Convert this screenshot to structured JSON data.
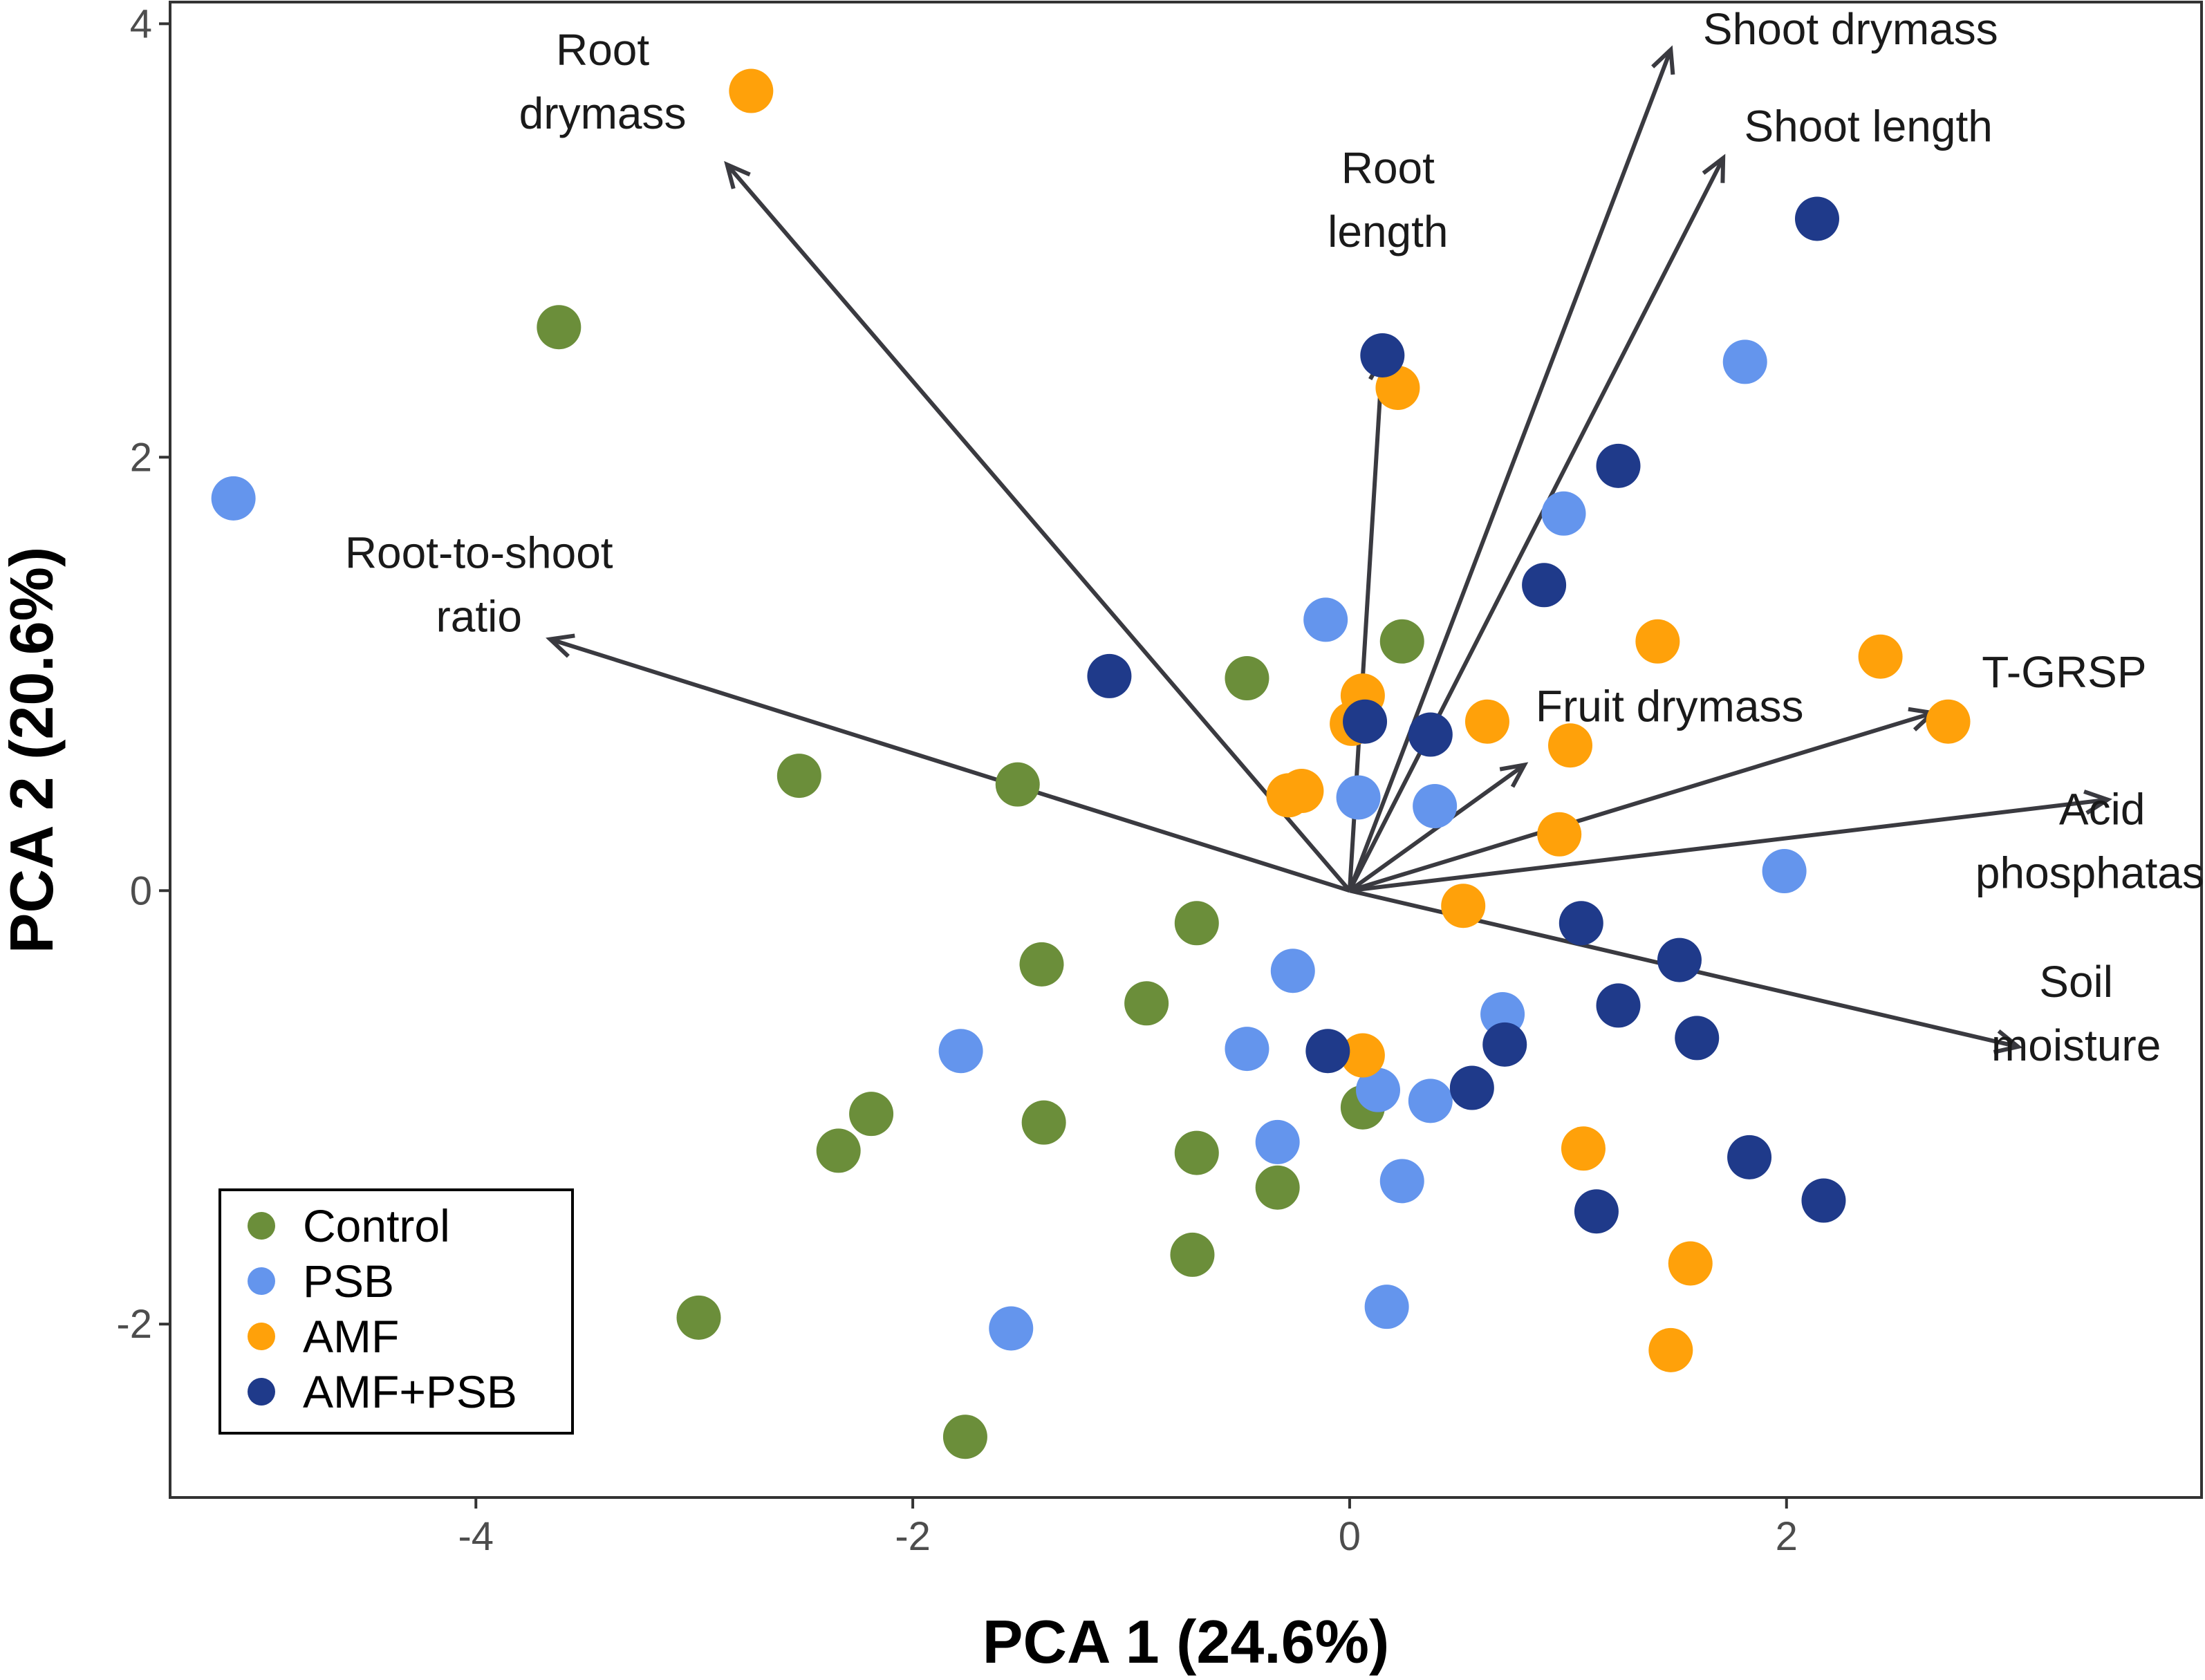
{
  "chart_data": {
    "type": "scatter",
    "subtype": "pca-biplot",
    "title": "",
    "xlabel": "PCA 1 (24.6%)",
    "ylabel": "PCA 2 (20.6%)",
    "xlim": [
      -5.4,
      3.9
    ],
    "ylim": [
      -2.8,
      4.1
    ],
    "x_ticks": [
      {
        "value": -4,
        "label": "-4"
      },
      {
        "value": -2,
        "label": "-2"
      },
      {
        "value": 0,
        "label": "0"
      },
      {
        "value": 2,
        "label": "2"
      }
    ],
    "y_ticks": [
      {
        "value": -2,
        "label": "-2"
      },
      {
        "value": 0,
        "label": "0"
      },
      {
        "value": 2,
        "label": "2"
      },
      {
        "value": 4,
        "label": "4"
      }
    ],
    "grid": false,
    "legend_position": "bottom-left",
    "series": [
      {
        "name": "Control",
        "color": "#6b8e3a",
        "points": [
          [
            -3.62,
            2.6
          ],
          [
            -2.52,
            0.53
          ],
          [
            -1.52,
            0.49
          ],
          [
            -0.47,
            0.98
          ],
          [
            0.24,
            1.15
          ],
          [
            -0.7,
            -0.15
          ],
          [
            -1.41,
            -0.34
          ],
          [
            -0.93,
            -0.52
          ],
          [
            -2.19,
            -1.03
          ],
          [
            -2.34,
            -1.2
          ],
          [
            -1.4,
            -1.07
          ],
          [
            -0.7,
            -1.21
          ],
          [
            -0.33,
            -1.37
          ],
          [
            -0.72,
            -1.68
          ],
          [
            0.06,
            -1.0
          ],
          [
            -2.98,
            -1.97
          ],
          [
            -1.76,
            -2.52
          ]
        ]
      },
      {
        "name": "PSB",
        "color": "#6495ed",
        "points": [
          [
            -5.11,
            1.81
          ],
          [
            -0.11,
            1.25
          ],
          [
            0.04,
            0.43
          ],
          [
            0.39,
            0.39
          ],
          [
            0.98,
            1.74
          ],
          [
            1.81,
            2.44
          ],
          [
            1.99,
            0.09
          ],
          [
            -0.26,
            -0.37
          ],
          [
            -0.47,
            -0.73
          ],
          [
            0.7,
            -0.57
          ],
          [
            0.13,
            -0.92
          ],
          [
            0.37,
            -0.97
          ],
          [
            -1.78,
            -0.74
          ],
          [
            -0.33,
            -1.16
          ],
          [
            0.24,
            -1.34
          ],
          [
            0.17,
            -1.92
          ],
          [
            -1.55,
            -2.02
          ]
        ]
      },
      {
        "name": "AMF",
        "color": "#ffa10a",
        "points": [
          [
            -2.74,
            3.69
          ],
          [
            0.22,
            2.32
          ],
          [
            1.41,
            1.15
          ],
          [
            2.43,
            1.08
          ],
          [
            2.74,
            0.78
          ],
          [
            0.06,
            0.9
          ],
          [
            0.01,
            0.77
          ],
          [
            0.63,
            0.78
          ],
          [
            1.01,
            0.67
          ],
          [
            -0.22,
            0.46
          ],
          [
            -0.28,
            0.44
          ],
          [
            0.96,
            0.26
          ],
          [
            0.52,
            -0.07
          ],
          [
            0.06,
            -0.76
          ],
          [
            1.07,
            -1.19
          ],
          [
            1.56,
            -1.72
          ],
          [
            1.47,
            -2.12
          ]
        ]
      },
      {
        "name": "AMF+PSB",
        "color": "#1f3a8a",
        "points": [
          [
            2.14,
            3.1
          ],
          [
            0.15,
            2.47
          ],
          [
            1.23,
            1.96
          ],
          [
            0.89,
            1.41
          ],
          [
            -1.1,
            0.99
          ],
          [
            0.07,
            0.78
          ],
          [
            0.37,
            0.72
          ],
          [
            1.06,
            -0.15
          ],
          [
            1.51,
            -0.32
          ],
          [
            1.23,
            -0.53
          ],
          [
            1.59,
            -0.68
          ],
          [
            0.71,
            -0.71
          ],
          [
            -0.1,
            -0.74
          ],
          [
            0.56,
            -0.91
          ],
          [
            1.83,
            -1.23
          ],
          [
            1.13,
            -1.48
          ],
          [
            2.17,
            -1.43
          ]
        ]
      }
    ],
    "loadings": [
      {
        "name": "Root drymass",
        "lines": [
          "Root",
          "drymass"
        ],
        "x": -2.85,
        "y": 3.35
      },
      {
        "name": "Shoot drymass",
        "lines": [
          "Shoot drymass"
        ],
        "x": 1.47,
        "y": 3.88
      },
      {
        "name": "Shoot length",
        "lines": [
          "Shoot length"
        ],
        "x": 1.71,
        "y": 3.38
      },
      {
        "name": "Root length",
        "lines": [
          "Root",
          "length"
        ],
        "x": 0.15,
        "y": 2.46
      },
      {
        "name": "Root-to-shoot ratio",
        "lines": [
          "Root-to-shoot",
          "ratio"
        ],
        "x": -3.66,
        "y": 1.16
      },
      {
        "name": "Fruit drymass",
        "lines": [
          "Fruit drymass"
        ],
        "x": 0.8,
        "y": 0.58
      },
      {
        "name": "T-GRSP",
        "lines": [
          "T-GRSP"
        ],
        "x": 2.67,
        "y": 0.82
      },
      {
        "name": "Acid phosphatase",
        "lines": [
          "Acid",
          "phosphatase"
        ],
        "x": 3.47,
        "y": 0.42
      },
      {
        "name": "Soil moisture",
        "lines": [
          "Soil",
          "moisture"
        ],
        "x": 3.06,
        "y": -0.72
      }
    ]
  }
}
